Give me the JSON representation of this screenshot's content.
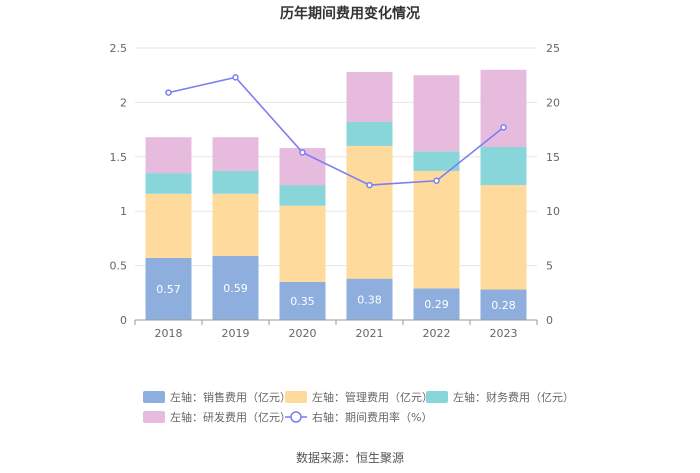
{
  "chart_data": {
    "type": "bar",
    "title": "历年期间费用变化情况",
    "categories": [
      "2018",
      "2019",
      "2020",
      "2021",
      "2022",
      "2023"
    ],
    "left_axis": {
      "ylim": [
        0,
        2.5
      ],
      "ticks": [
        "0",
        "0.5",
        "1",
        "1.5",
        "2",
        "2.5"
      ],
      "tick_values": [
        0,
        0.5,
        1,
        1.5,
        2,
        2.5
      ]
    },
    "right_axis": {
      "ylim": [
        0,
        25
      ],
      "ticks": [
        "0",
        "5",
        "10",
        "15",
        "20",
        "25"
      ],
      "tick_values": [
        0,
        5,
        10,
        15,
        20,
        25
      ]
    },
    "series": [
      {
        "name": "左轴：销售费用（亿元）",
        "type": "bar",
        "axis": "left",
        "color": "#8eaede",
        "values": [
          0.57,
          0.59,
          0.35,
          0.38,
          0.29,
          0.28
        ],
        "labels": [
          "0.57",
          "0.59",
          "0.35",
          "0.38",
          "0.29",
          "0.28"
        ]
      },
      {
        "name": "左轴：管理费用（亿元）",
        "type": "bar",
        "axis": "left",
        "color": "#fedb9c",
        "values": [
          0.59,
          0.57,
          0.7,
          1.22,
          1.08,
          0.96
        ]
      },
      {
        "name": "左轴：财务费用（亿元）",
        "type": "bar",
        "axis": "left",
        "color": "#88d6da",
        "values": [
          0.19,
          0.21,
          0.19,
          0.22,
          0.18,
          0.35
        ]
      },
      {
        "name": "左轴：研发费用（亿元）",
        "type": "bar",
        "axis": "left",
        "color": "#e7bbdd",
        "values": [
          0.33,
          0.31,
          0.34,
          0.46,
          0.7,
          0.71
        ]
      },
      {
        "name": "右轴：期间费用率（%）",
        "type": "line",
        "axis": "right",
        "color": "#7b7ef0",
        "values": [
          20.9,
          22.3,
          15.4,
          12.4,
          12.8,
          17.7
        ]
      }
    ],
    "legend_position": "bottom",
    "grid": true
  },
  "source": "数据来源：恒生聚源"
}
